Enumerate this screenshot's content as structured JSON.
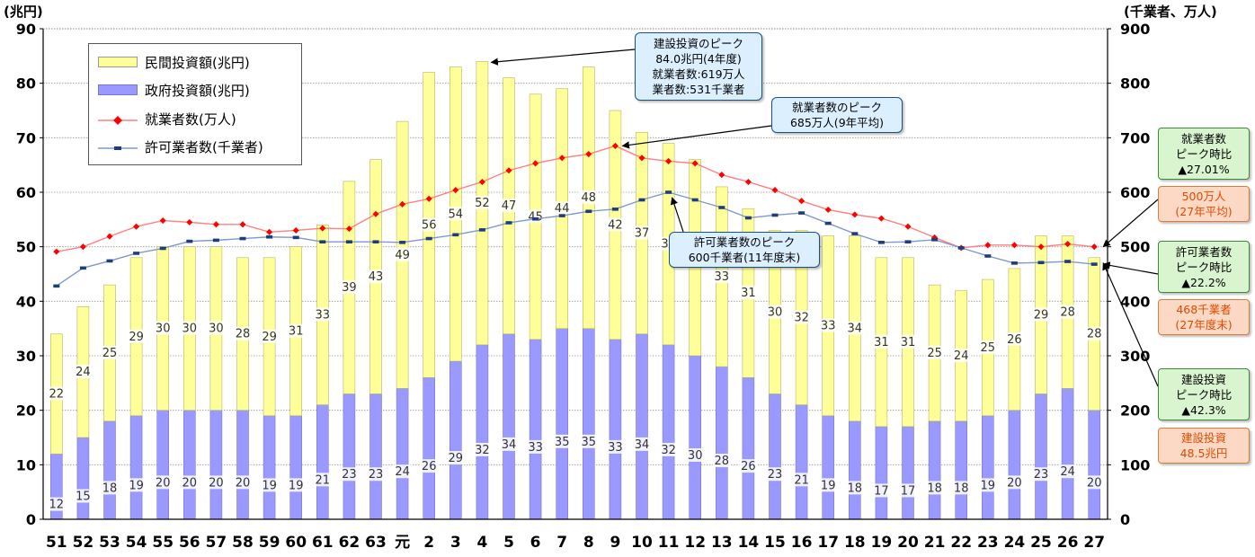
{
  "unit_left": "(兆円)",
  "unit_right": "(千業者、万人)",
  "legend": {
    "private": "民間投資額(兆円)",
    "government": "政府投資額(兆円)",
    "workers": "就業者数(万人)",
    "contractors": "許可業者数(千業者)"
  },
  "callouts": {
    "peak_invest": [
      "建設投資のピーク",
      "84.0兆円(4年度)",
      "就業者数:619万人",
      "業者数:531千業者"
    ],
    "peak_workers": [
      "就業者数のピーク",
      "685万人(9年平均)"
    ],
    "peak_contractors": [
      "許可業者数のピーク",
      "600千業者(11年度末)"
    ]
  },
  "side_boxes": {
    "workers_ratio": [
      "就業者数",
      "ピーク時比",
      "▲27.01%"
    ],
    "workers_value": [
      "500万人",
      "(27年平均)"
    ],
    "contractors_ratio": [
      "許可業者数",
      "ピーク時比",
      "▲22.2%"
    ],
    "contractors_value": [
      "468千業者",
      "(27年度末)"
    ],
    "invest_ratio": [
      "建設投資",
      "ピーク時比",
      "▲42.3%"
    ],
    "invest_value": [
      "建設投資",
      "48.5兆円"
    ]
  },
  "colors": {
    "private": "#ffff99",
    "government": "#9999ff",
    "workers": "#ff0000",
    "contractors": "#1f3d7a",
    "workers_line": "#ff8080",
    "contractors_line": "#8099cc"
  },
  "chart_data": {
    "type": "bar",
    "categories": [
      "51",
      "52",
      "53",
      "54",
      "55",
      "56",
      "57",
      "58",
      "59",
      "60",
      "61",
      "62",
      "63",
      "元",
      "2",
      "3",
      "4",
      "5",
      "6",
      "7",
      "8",
      "9",
      "10",
      "11",
      "12",
      "13",
      "14",
      "15",
      "16",
      "17",
      "18",
      "19",
      "20",
      "21",
      "22",
      "23",
      "24",
      "25",
      "26",
      "27"
    ],
    "ylim_left": [
      0,
      90
    ],
    "ylim_right": [
      0,
      900
    ],
    "yticks_left": [
      0,
      10,
      20,
      30,
      40,
      50,
      60,
      70,
      80,
      90
    ],
    "yticks_right": [
      0,
      100,
      200,
      300,
      400,
      500,
      600,
      700,
      800,
      900
    ],
    "grid": true,
    "legend_position": "top-left",
    "series": [
      {
        "name": "政府投資額(兆円)",
        "kind": "bar",
        "values": [
          12,
          15,
          18,
          19,
          20,
          20,
          20,
          20,
          19,
          19,
          21,
          23,
          23,
          24,
          26,
          29,
          32,
          34,
          33,
          35,
          35,
          33,
          34,
          32,
          30,
          28,
          26,
          23,
          21,
          19,
          18,
          17,
          17,
          18,
          18,
          19,
          20,
          23,
          24,
          20
        ],
        "labels": [
          "12",
          "15",
          "18",
          "19",
          "20",
          "20",
          "20",
          "20",
          "19",
          "19",
          "21",
          "23",
          "23",
          "24",
          "26",
          "29",
          "32",
          "34",
          "33",
          "35",
          "35",
          "33",
          "34",
          "32",
          "30",
          "28",
          "26",
          "23",
          "21",
          "19",
          "18",
          "17",
          "17",
          "18",
          "18",
          "19",
          "20",
          "23",
          "24",
          "20"
        ]
      },
      {
        "name": "民間投資額(兆円)",
        "kind": "bar",
        "values": [
          22,
          24,
          25,
          29,
          30,
          30,
          30,
          28,
          29,
          31,
          33,
          39,
          43,
          49,
          56,
          54,
          52,
          47,
          45,
          44,
          48,
          42,
          37,
          37,
          36,
          33,
          31,
          30,
          32,
          33,
          34,
          31,
          31,
          25,
          24,
          25,
          26,
          29,
          28,
          28
        ],
        "labels": [
          "22",
          "24",
          "25",
          "29",
          "30",
          "30",
          "30",
          "28",
          "29",
          "31",
          "33",
          "39",
          "43",
          "49",
          "56",
          "54",
          "52",
          "47",
          "45",
          "44",
          "48",
          "42",
          "37",
          "37",
          "36",
          "33",
          "31",
          "30",
          "32",
          "33",
          "34",
          "31",
          "31",
          "25",
          "24",
          "25",
          "26",
          "29",
          "28",
          "28"
        ]
      },
      {
        "name": "就業者数(万人)",
        "kind": "line",
        "axis": "right",
        "values": [
          491,
          500,
          519,
          537,
          548,
          545,
          541,
          541,
          527,
          530,
          534,
          533,
          560,
          578,
          588,
          604,
          619,
          640,
          653,
          663,
          670,
          685,
          663,
          657,
          653,
          632,
          619,
          604,
          584,
          568,
          559,
          552,
          537,
          517,
          498,
          503,
          503,
          500,
          505,
          500
        ]
      },
      {
        "name": "許可業者数(千業者)",
        "kind": "line",
        "axis": "right",
        "values": [
          428,
          461,
          474,
          488,
          497,
          510,
          512,
          515,
          518,
          517,
          509,
          509,
          509,
          508,
          515,
          522,
          531,
          544,
          551,
          557,
          565,
          569,
          586,
          600,
          586,
          572,
          553,
          558,
          562,
          543,
          524,
          508,
          509,
          513,
          498,
          483,
          470,
          471,
          473,
          468
        ]
      }
    ]
  }
}
